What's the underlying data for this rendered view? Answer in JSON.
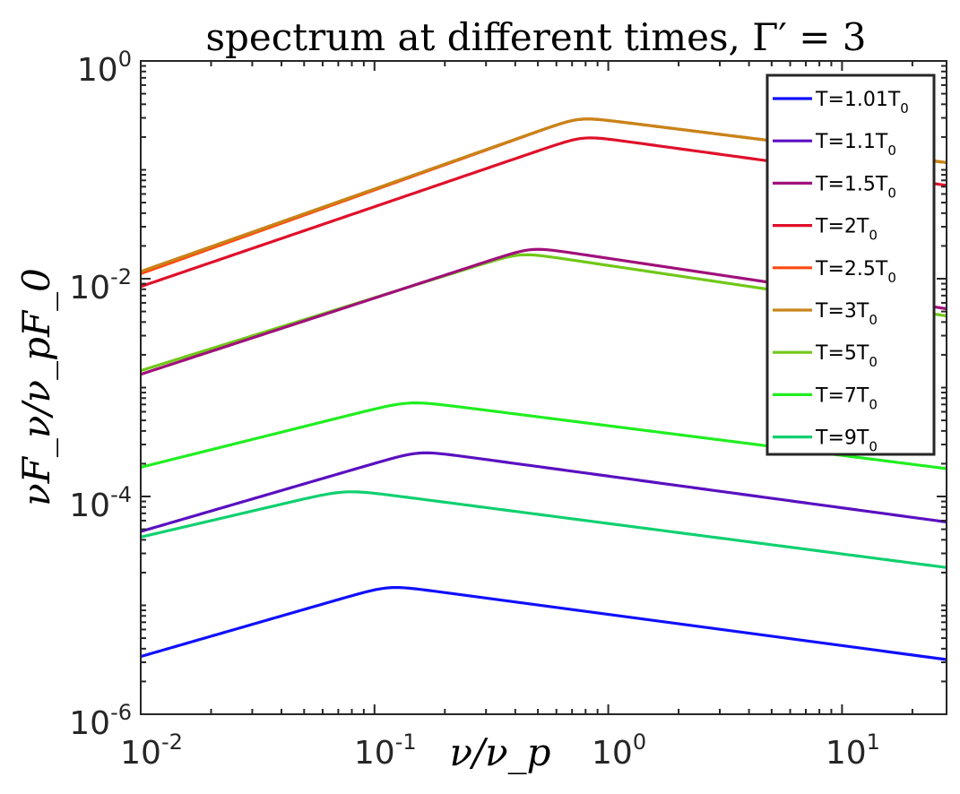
{
  "chart_data": {
    "type": "line",
    "title": "spectrum at different times, Γ′ = 3",
    "xlabel": "ν/ν_p",
    "ylabel": "νF_ν/ν_pF_0",
    "xscale": "log",
    "yscale": "log",
    "xlim": [
      0.01,
      28
    ],
    "ylim": [
      1e-06,
      1
    ],
    "grid": false,
    "legend_position": "top-right",
    "x_ticks": [
      {
        "base": "10",
        "exp": "-2",
        "value": 0.01
      },
      {
        "base": "10",
        "exp": "-1",
        "value": 0.1
      },
      {
        "base": "10",
        "exp": "0",
        "value": 1
      },
      {
        "base": "10",
        "exp": "1",
        "value": 10
      }
    ],
    "y_ticks": [
      {
        "base": "10",
        "exp": "0",
        "value": 1
      },
      {
        "base": "10",
        "exp": "-2",
        "value": 0.01
      },
      {
        "base": "10",
        "exp": "-4",
        "value": 0.0001
      },
      {
        "base": "10",
        "exp": "-6",
        "value": 1e-06
      }
    ],
    "series": [
      {
        "name": "T=1.01T",
        "sub": "0",
        "color": "#1010ff",
        "peak_x": 0.115,
        "peak_y": 1.45e-05,
        "start_y": 3.2e-06,
        "end_y": 3e-06
      },
      {
        "name": "T=1.1T",
        "sub": "0",
        "color": "#5a10c0",
        "peak_x": 0.155,
        "peak_y": 0.00025,
        "start_y": 4.5e-05,
        "end_y": 5.5e-05
      },
      {
        "name": "T=1.5T",
        "sub": "0",
        "color": "#a0107a",
        "peak_x": 0.47,
        "peak_y": 0.0185,
        "start_y": 0.00125,
        "end_y": 0.005
      },
      {
        "name": "T=2T",
        "sub": "0",
        "color": "#e0102a",
        "peak_x": 0.78,
        "peak_y": 0.195,
        "start_y": 0.008,
        "end_y": 0.068
      },
      {
        "name": "T=2.5T",
        "sub": "0",
        "color": "#ff4a10",
        "peak_x": 0.75,
        "peak_y": 0.29,
        "start_y": 0.0105,
        "end_y": 0.11
      },
      {
        "name": "T=3T",
        "sub": "0",
        "color": "#c88418",
        "peak_x": 0.75,
        "peak_y": 0.29,
        "start_y": 0.011,
        "end_y": 0.11
      },
      {
        "name": "T=5T",
        "sub": "0",
        "color": "#70c818",
        "peak_x": 0.42,
        "peak_y": 0.0165,
        "start_y": 0.00135,
        "end_y": 0.0043
      },
      {
        "name": "T=7T",
        "sub": "0",
        "color": "#20ee20",
        "peak_x": 0.14,
        "peak_y": 0.00072,
        "start_y": 0.000175,
        "end_y": 0.00017
      },
      {
        "name": "T=9T",
        "sub": "0",
        "color": "#10d070",
        "peak_x": 0.075,
        "peak_y": 0.00011,
        "start_y": 4e-05,
        "end_y": 2.1e-05
      }
    ]
  }
}
